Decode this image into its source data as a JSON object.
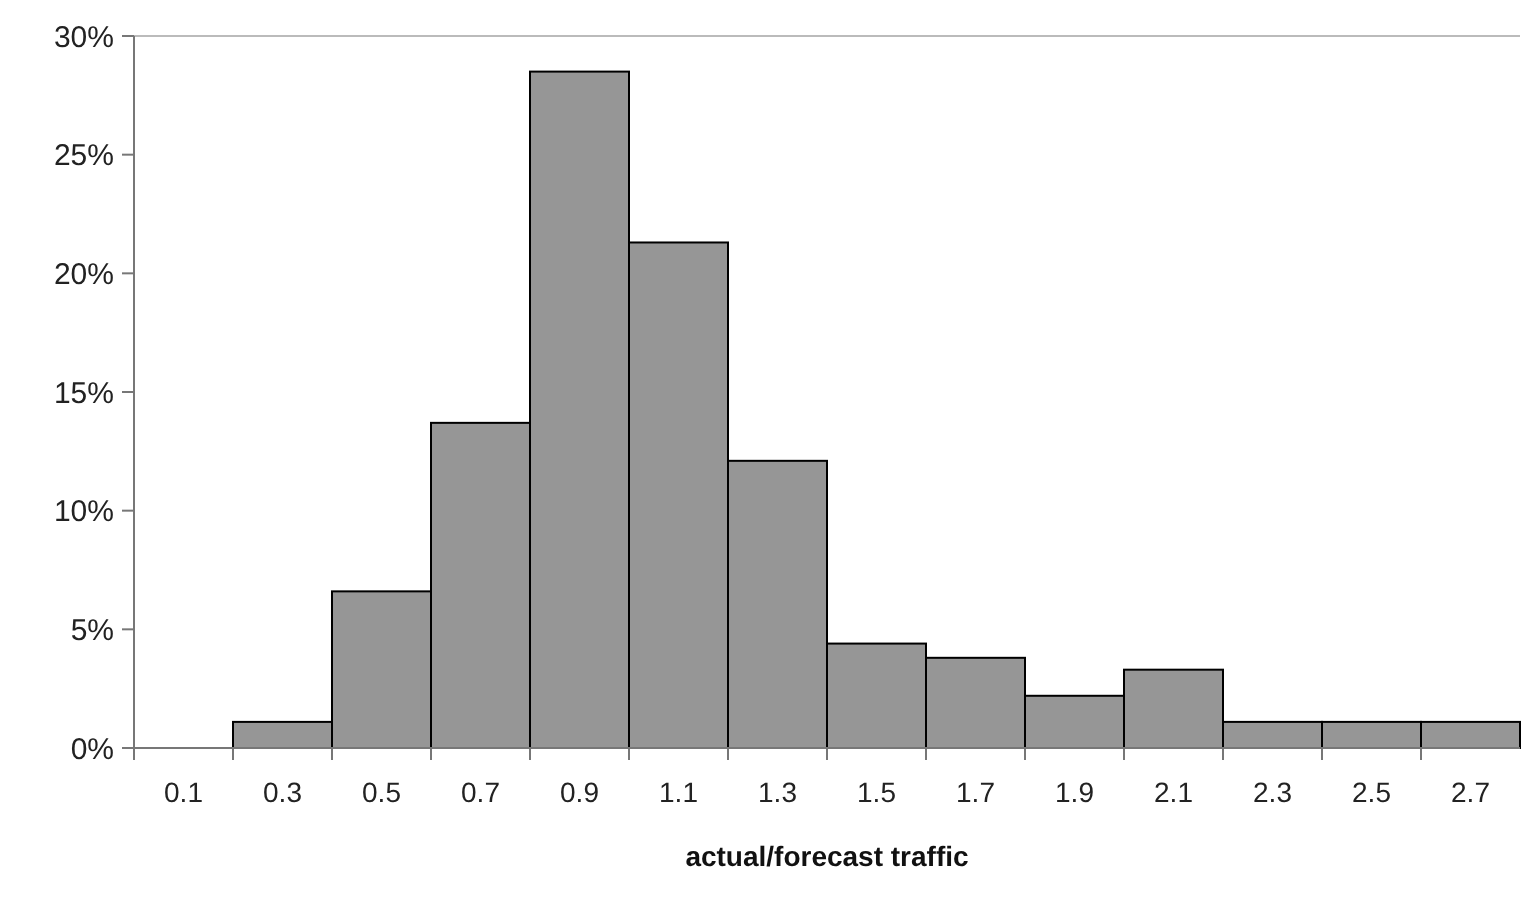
{
  "chart_data": {
    "type": "bar",
    "xlabel": "actual/forecast traffic",
    "categories": [
      "0.1",
      "0.3",
      "0.5",
      "0.7",
      "0.9",
      "1.1",
      "1.3",
      "1.5",
      "1.7",
      "1.9",
      "2.1",
      "2.3",
      "2.5",
      "2.7"
    ],
    "values": [
      0,
      1.1,
      6.6,
      13.7,
      28.5,
      21.3,
      12.1,
      4.4,
      3.8,
      2.2,
      3.3,
      1.1,
      1.1,
      1.1
    ],
    "color": "#969696",
    "ylim": [
      0,
      30
    ],
    "yticks": [
      {
        "value": 0,
        "label": "0%"
      },
      {
        "value": 5,
        "label": "5%"
      },
      {
        "value": 10,
        "label": "10%"
      },
      {
        "value": 15,
        "label": "15%"
      },
      {
        "value": 20,
        "label": "20%"
      },
      {
        "value": 25,
        "label": "25%"
      },
      {
        "value": 30,
        "label": "30%"
      }
    ]
  }
}
